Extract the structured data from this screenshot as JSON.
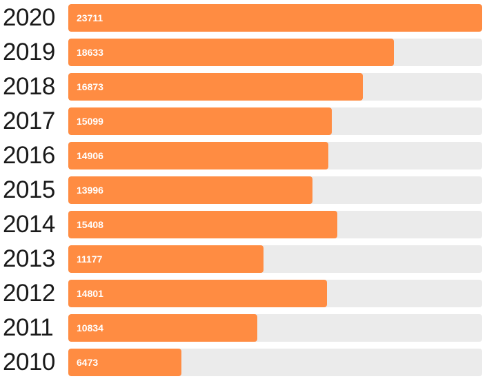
{
  "chart_data": {
    "type": "bar",
    "orientation": "horizontal",
    "categories": [
      "2020",
      "2019",
      "2018",
      "2017",
      "2016",
      "2015",
      "2014",
      "2013",
      "2012",
      "2011",
      "2010"
    ],
    "values": [
      23711,
      18633,
      16873,
      15099,
      14906,
      13996,
      15408,
      11177,
      14801,
      10834,
      6473
    ],
    "xlim": [
      0,
      23711
    ],
    "grid": false,
    "legend": "none",
    "bar_color": "#ff8c42",
    "track_color": "#ebebeb"
  }
}
